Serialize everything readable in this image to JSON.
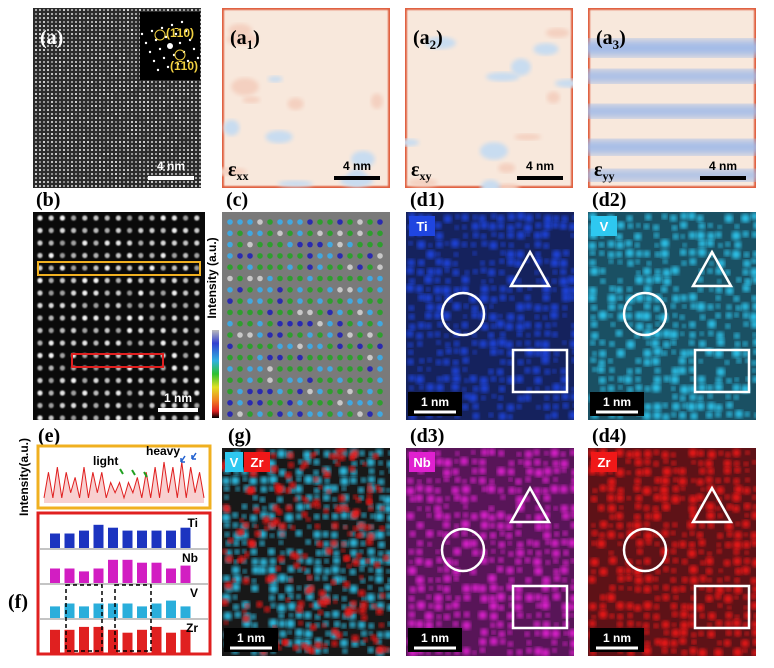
{
  "figure": {
    "a": {
      "label": "(a)",
      "scale": "4 nm",
      "fft": [
        "(1̄10)",
        "(1̄10)"
      ]
    },
    "strain": [
      {
        "label": "(a",
        "sub": "1",
        "close": ")",
        "symbol": "ε",
        "comp": "xx",
        "scale": "4 nm"
      },
      {
        "label": "(a",
        "sub": "2",
        "close": ")",
        "symbol": "ε",
        "comp": "xy",
        "scale": "4 nm"
      },
      {
        "label": "(a",
        "sub": "3",
        "close": ")",
        "symbol": "ε",
        "comp": "yy",
        "scale": "4 nm"
      }
    ],
    "b": {
      "label": "(b)",
      "scale": "1 nm"
    },
    "c": {
      "label": "(c)",
      "colorbar": "Intensity (a.u.)"
    },
    "maps": [
      {
        "label": "(d1)",
        "element": "Ti",
        "scale": "1 nm",
        "color": "#1f45e0"
      },
      {
        "label": "(d2)",
        "element": "V",
        "scale": "1 nm",
        "color": "#2ec8f0"
      },
      {
        "label": "(d3)",
        "element": "Nb",
        "scale": "1 nm",
        "color": "#e020d0"
      },
      {
        "label": "(d4)",
        "element": "Zr",
        "scale": "1 nm",
        "color": "#f01818"
      }
    ],
    "g": {
      "label": "(g)",
      "elements": [
        "V",
        "Zr"
      ],
      "scale": "1 nm"
    },
    "e": {
      "label": "(e)",
      "ylabel": "Intensity(a.u.)",
      "heavy": "heavy",
      "light": "light",
      "values": [
        1,
        6,
        1,
        7,
        1,
        6,
        2,
        5,
        1,
        7,
        1,
        6,
        2,
        6,
        1,
        4,
        2,
        4,
        1,
        4,
        2,
        5,
        1,
        6,
        1,
        7,
        1,
        8,
        2,
        7,
        1,
        8,
        1,
        7,
        2,
        6,
        1
      ]
    },
    "f": {
      "label": "(f)",
      "rows": [
        {
          "name": "Ti",
          "color": "#1c34c0",
          "values": [
            5,
            5,
            6,
            8,
            7,
            6,
            6,
            6,
            6,
            7
          ]
        },
        {
          "name": "Nb",
          "color": "#d21ec2",
          "values": [
            5,
            5,
            4,
            5,
            8,
            8,
            7,
            7,
            5,
            6
          ]
        },
        {
          "name": "V",
          "color": "#2aaedb",
          "values": [
            4,
            5,
            4,
            5,
            5,
            5,
            4,
            5,
            6,
            4
          ]
        },
        {
          "name": "Zr",
          "color": "#e02020",
          "values": [
            8,
            8,
            9,
            9,
            8,
            7,
            8,
            9,
            7,
            8
          ]
        }
      ]
    }
  }
}
